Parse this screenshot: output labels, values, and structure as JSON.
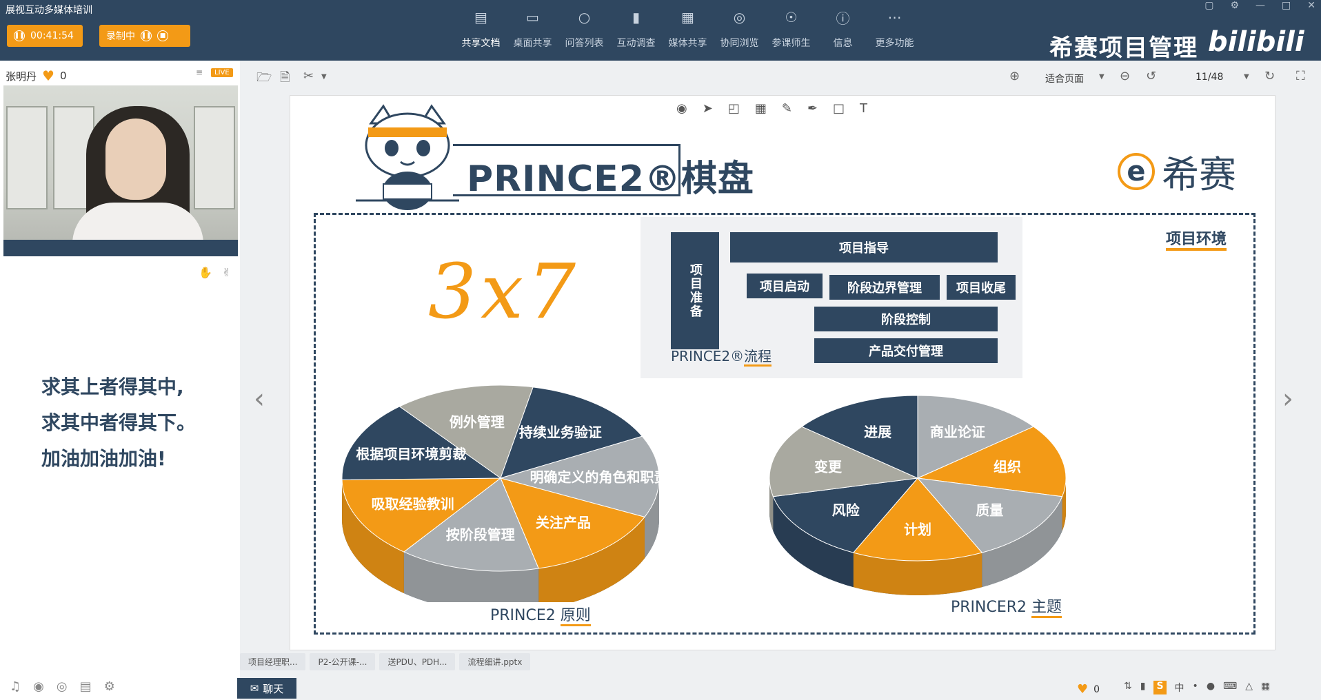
{
  "window": {
    "title": "展视互动多媒体培训"
  },
  "recording": {
    "timer": "00:41:54",
    "status": "录制中"
  },
  "toolbar": {
    "items": [
      {
        "label": "共享文档",
        "icon": "document-share-icon"
      },
      {
        "label": "桌面共享",
        "icon": "desktop-share-icon"
      },
      {
        "label": "问答列表",
        "icon": "qa-list-icon"
      },
      {
        "label": "互动调查",
        "icon": "survey-icon"
      },
      {
        "label": "媒体共享",
        "icon": "media-share-icon"
      },
      {
        "label": "协同浏览",
        "icon": "browse-icon"
      },
      {
        "label": "参课师生",
        "icon": "participants-icon"
      },
      {
        "label": "信息",
        "icon": "info-icon"
      },
      {
        "label": "更多功能",
        "icon": "more-icon"
      }
    ]
  },
  "brand": {
    "name": "希赛项目管理",
    "platform": "bilibili"
  },
  "presenter": {
    "name": "张明丹",
    "likes": "0",
    "live_badge": "LIVE"
  },
  "motto": {
    "line1": "求其上者得其中,",
    "line2": "求其中者得其下。",
    "line3": "加油加油加油!"
  },
  "viewer": {
    "fit_mode": "适合页面",
    "page": "11/48"
  },
  "slide": {
    "title": "PRINCE2®棋盘",
    "logo_text": "希赛",
    "env_label": "项目环境",
    "handwritten": "3x7",
    "process": {
      "prepare": "项目准备",
      "direct": "项目指导",
      "initiate": "项目启动",
      "boundary": "阶段边界管理",
      "close": "项目收尾",
      "control": "阶段控制",
      "delivery": "产品交付管理",
      "caption_prefix": "PRINCE2®",
      "caption_underlined": "流程"
    },
    "principles": {
      "caption_prefix": "PRINCE2 ",
      "caption_underlined": "原则",
      "slices": [
        {
          "label": "例外管理",
          "color": "#a9a9a0"
        },
        {
          "label": "持续业务验证",
          "color": "#2f4760"
        },
        {
          "label": "明确定义的角色和职责",
          "color": "#a9aeb2"
        },
        {
          "label": "关注产品",
          "color": "#f39a16"
        },
        {
          "label": "按阶段管理",
          "color": "#a9aeb2"
        },
        {
          "label": "吸取经验教训",
          "color": "#f39a16"
        },
        {
          "label": "根据项目环境剪裁",
          "color": "#2f4760"
        }
      ]
    },
    "themes": {
      "caption_prefix": "PRINCER2 ",
      "caption_underlined": "主题",
      "slices": [
        {
          "label": "商业论证",
          "color": "#a9aeb2"
        },
        {
          "label": "组织",
          "color": "#f39a16"
        },
        {
          "label": "质量",
          "color": "#a9aeb2"
        },
        {
          "label": "计划",
          "color": "#f39a16"
        },
        {
          "label": "风险",
          "color": "#2f4760"
        },
        {
          "label": "变更",
          "color": "#a9a9a0"
        },
        {
          "label": "进展",
          "color": "#2f4760"
        }
      ]
    }
  },
  "tabs": [
    {
      "label": "项目经理职..."
    },
    {
      "label": "P2-公开课-..."
    },
    {
      "label": "送PDU、PDH..."
    },
    {
      "label": "流程细讲.pptx"
    }
  ],
  "chat": {
    "label": "聊天"
  },
  "status": {
    "likes": "0"
  }
}
